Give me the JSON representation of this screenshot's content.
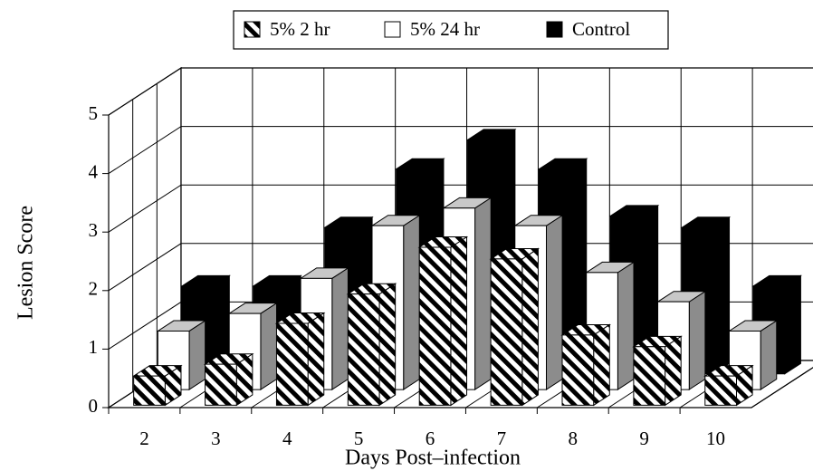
{
  "chart_data": {
    "type": "bar3d",
    "xlabel": "Days Post–infection",
    "ylabel": "Lesion Score",
    "categories": [
      2,
      3,
      4,
      5,
      6,
      7,
      8,
      9,
      10
    ],
    "series": [
      {
        "name": "5% 2 hr",
        "color": "#000000",
        "pattern": "hatch",
        "values": [
          0.5,
          0.7,
          1.4,
          1.9,
          2.7,
          2.5,
          1.2,
          1.0,
          0.5
        ]
      },
      {
        "name": "5% 24 hr",
        "color": "#ffffff",
        "values": [
          1.0,
          1.3,
          1.9,
          2.8,
          3.1,
          2.8,
          2.0,
          1.5,
          1.0
        ]
      },
      {
        "name": "Control",
        "color": "#000000",
        "values": [
          1.5,
          1.5,
          2.5,
          3.5,
          4.0,
          3.5,
          2.7,
          2.5,
          1.5
        ]
      }
    ],
    "ylim": [
      0,
      5
    ],
    "yticks": [
      0,
      1,
      2,
      3,
      4,
      5
    ],
    "grid": true
  }
}
